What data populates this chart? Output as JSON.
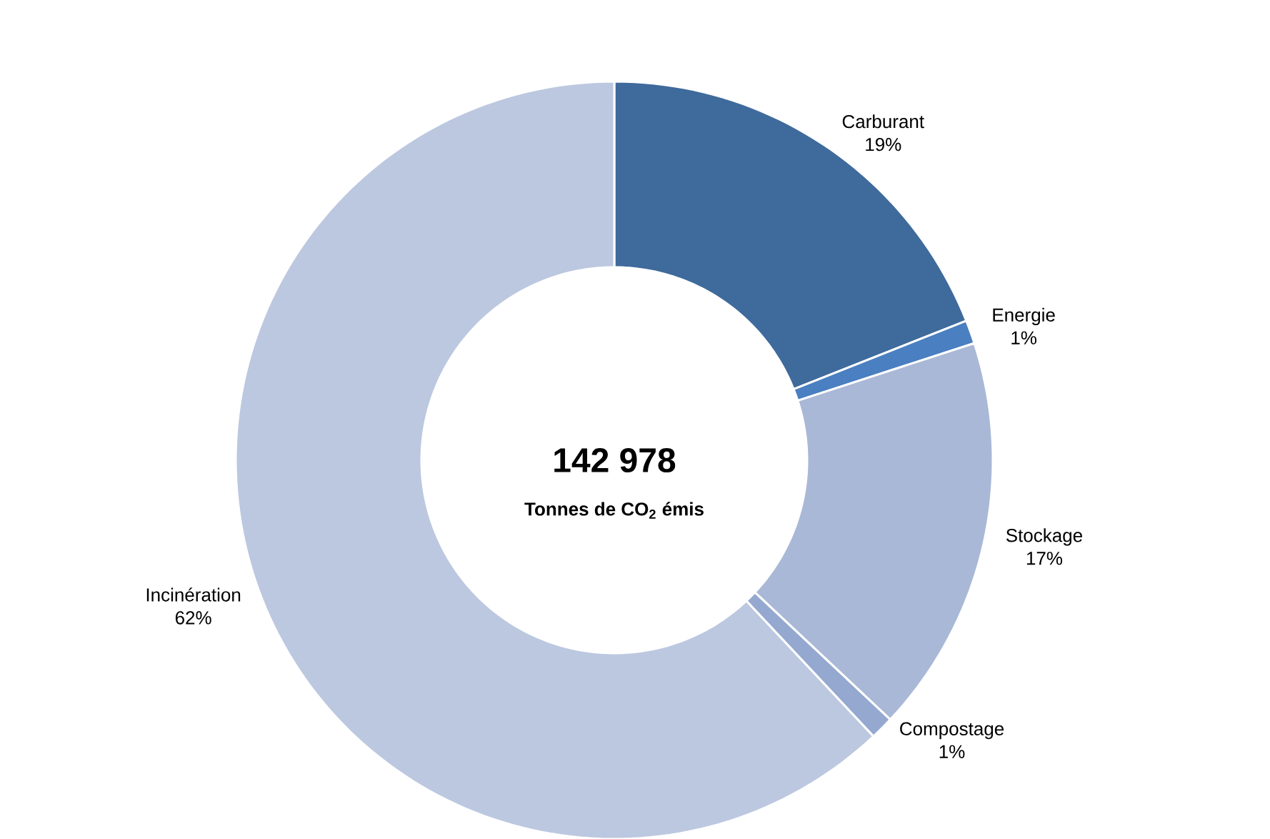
{
  "chart_data": {
    "type": "donut",
    "categories": [
      "Carburant",
      "Energie",
      "Stockage",
      "Compostage",
      "Incinération"
    ],
    "values": [
      19,
      1,
      17,
      1,
      62
    ],
    "value_labels": [
      "19%",
      "1%",
      "17%",
      "1%",
      "62%"
    ],
    "colors": [
      "#3f6a9c",
      "#4a7fc1",
      "#a9b8d6",
      "#95a8cf",
      "#bcc8e0"
    ],
    "annotations": [
      "142 978",
      "Tonnes de CO$_{2}$ émis"
    ]
  }
}
